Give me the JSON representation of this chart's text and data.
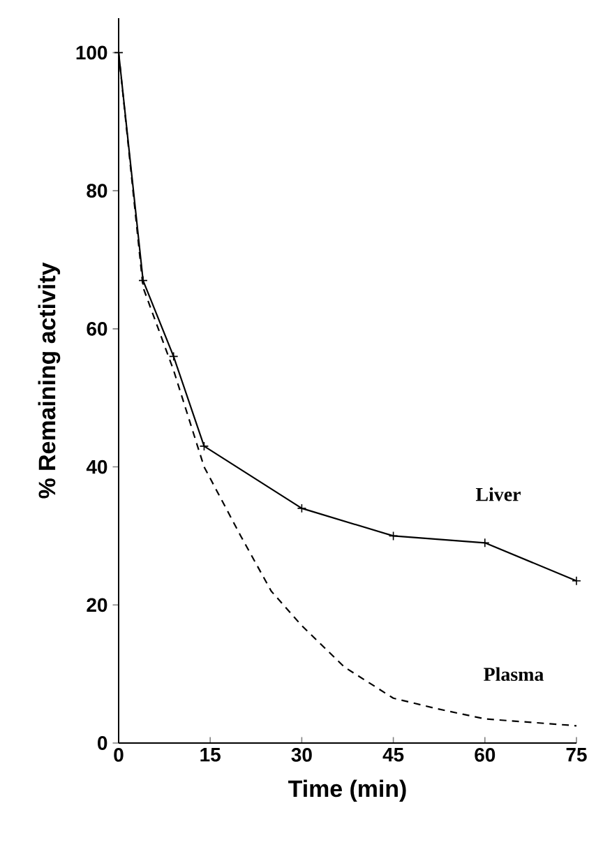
{
  "chart_data": {
    "type": "line",
    "xlabel": "Time (min)",
    "ylabel": "% Remaining activity",
    "xlim": [
      0,
      75
    ],
    "ylim": [
      0,
      105
    ],
    "xticks": [
      0,
      15,
      30,
      45,
      60,
      75
    ],
    "yticks": [
      0,
      20,
      40,
      60,
      80,
      100
    ],
    "grid": false,
    "series": [
      {
        "name": "Liver",
        "color": "#000000",
        "marker": "cross",
        "line_style": "solid",
        "x": [
          0,
          4,
          9,
          14,
          30,
          45,
          60,
          75
        ],
        "values": [
          100,
          67,
          56,
          43,
          34,
          30,
          29,
          23.5
        ]
      },
      {
        "name": "Plasma",
        "color": "#000000",
        "marker": "none",
        "line_style": "dashed",
        "x": [
          0,
          4,
          9,
          14,
          20,
          25,
          30,
          37,
          45,
          52,
          60,
          75
        ],
        "values": [
          100,
          66,
          54,
          40,
          30,
          22,
          17,
          11,
          6.5,
          5,
          3.5,
          2.5
        ]
      }
    ]
  }
}
